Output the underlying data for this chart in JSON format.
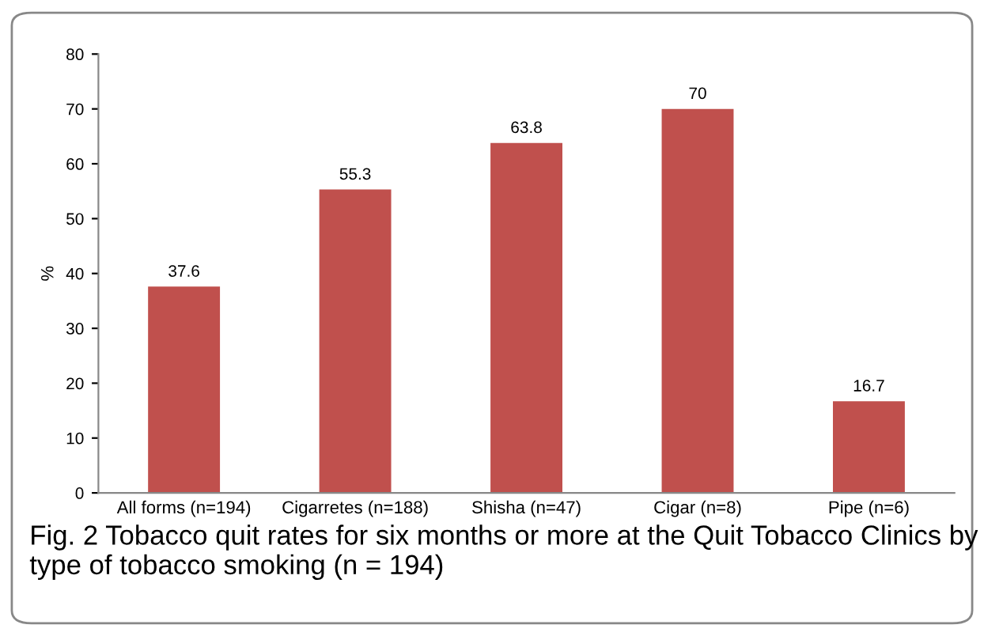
{
  "chart_data": {
    "type": "bar",
    "ylabel": "%",
    "categories": [
      "All forms (n=194)",
      "Cigarretes (n=188)",
      "Shisha (n=47)",
      "Cigar (n=8)",
      "Pipe (n=6)"
    ],
    "values": [
      37.6,
      55.3,
      63.8,
      70,
      16.7
    ],
    "color": "#c0504d",
    "ylim": [
      0,
      80
    ],
    "yticks": [
      0,
      10,
      20,
      30,
      40,
      50,
      60,
      70,
      80
    ],
    "grid": false,
    "data_labels": true,
    "annotations": [
      "Fig. 2 Tobacco quit rates for six months or more at the Quit Tobacco Clinics by type of tobacco smoking (n = 194)"
    ]
  }
}
